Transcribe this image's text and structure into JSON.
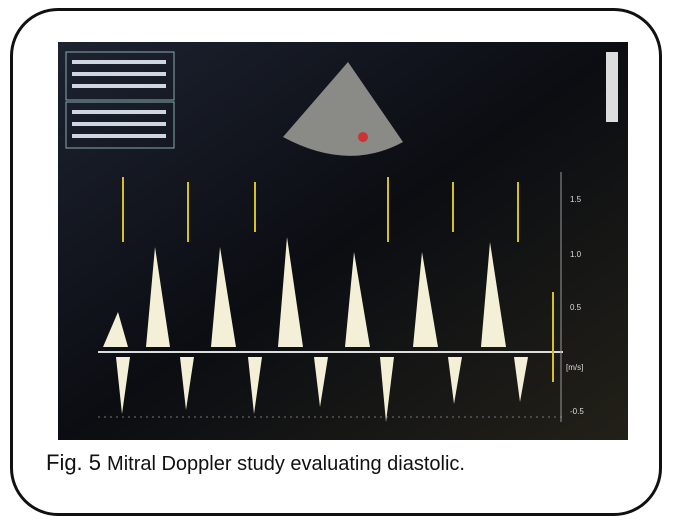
{
  "figure": {
    "label": "Fig. 5",
    "caption": "Mitral Doppler study evaluating diastolic.",
    "scale_labels": [
      "1.5",
      "1.0",
      "0.5",
      "[m/s]",
      "-0.5"
    ]
  }
}
